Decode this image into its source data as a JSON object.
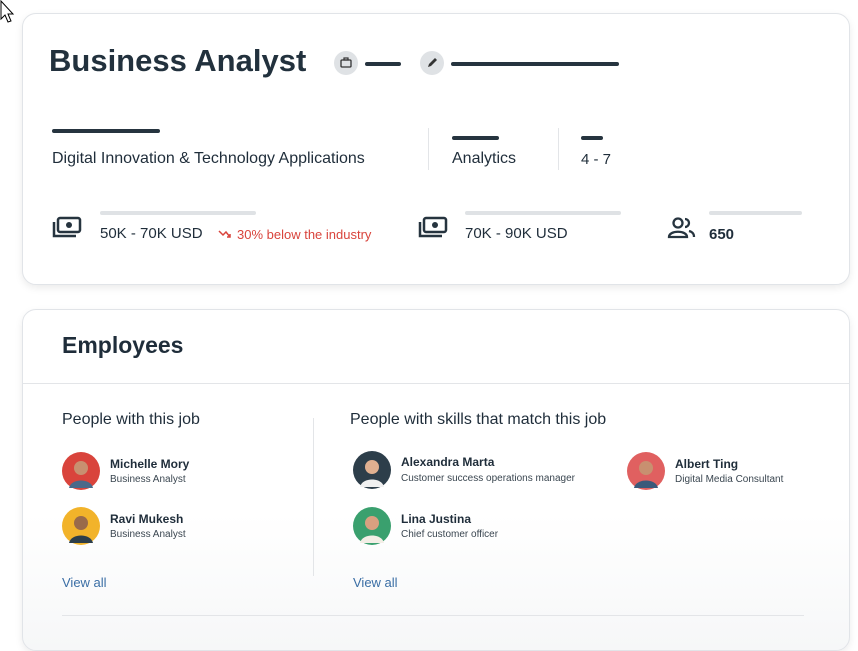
{
  "job": {
    "title": "Business Analyst",
    "department": "Digital Innovation & Technology Applications",
    "function": "Analytics",
    "level": "4 - 7",
    "salary": "50K - 70K USD",
    "salary_note": "30% below the industry",
    "industry_salary": "70K - 90K USD",
    "headcount": "650"
  },
  "employees": {
    "title": "Employees",
    "same_job": {
      "heading": "People with this job",
      "people": [
        {
          "name": "Michelle Mory",
          "role": "Business Analyst"
        },
        {
          "name": "Ravi Mukesh",
          "role": "Business Analyst"
        }
      ],
      "link": "View all"
    },
    "matching": {
      "heading": "People with skills that match this job",
      "people": [
        {
          "name": "Alexandra Marta",
          "role": "Customer success operations manager"
        },
        {
          "name": "Lina Justina",
          "role": "Chief customer officer"
        },
        {
          "name": "Albert Ting",
          "role": "Digital Media Consultant"
        }
      ],
      "link": "View all"
    }
  }
}
